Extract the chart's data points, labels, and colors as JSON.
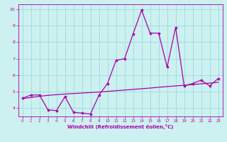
{
  "title": "",
  "xlabel": "Windchill (Refroidissement éolien,°C)",
  "ylabel": "",
  "bg_color": "#cdf0f0",
  "line_color": "#aa00aa",
  "grid_color": "#99dddd",
  "ylim": [
    3.5,
    10.3
  ],
  "xlim": [
    -0.5,
    23.5
  ],
  "yticks": [
    4,
    5,
    6,
    7,
    8,
    9,
    10
  ],
  "xticks": [
    0,
    1,
    2,
    3,
    4,
    5,
    6,
    7,
    8,
    9,
    10,
    11,
    12,
    13,
    14,
    15,
    16,
    17,
    18,
    19,
    20,
    21,
    22,
    23
  ],
  "main_line": [
    4.6,
    4.8,
    4.8,
    3.9,
    3.85,
    4.7,
    3.75,
    3.7,
    3.65,
    4.8,
    5.5,
    6.9,
    7.0,
    8.5,
    9.95,
    8.55,
    8.55,
    6.5,
    8.9,
    5.35,
    5.5,
    5.7,
    5.35,
    5.8
  ],
  "trend_line": [
    4.58,
    4.65,
    4.72,
    4.78,
    4.82,
    4.86,
    4.89,
    4.92,
    4.95,
    4.98,
    5.02,
    5.06,
    5.1,
    5.14,
    5.18,
    5.22,
    5.27,
    5.31,
    5.35,
    5.39,
    5.43,
    5.48,
    5.52,
    5.57
  ]
}
